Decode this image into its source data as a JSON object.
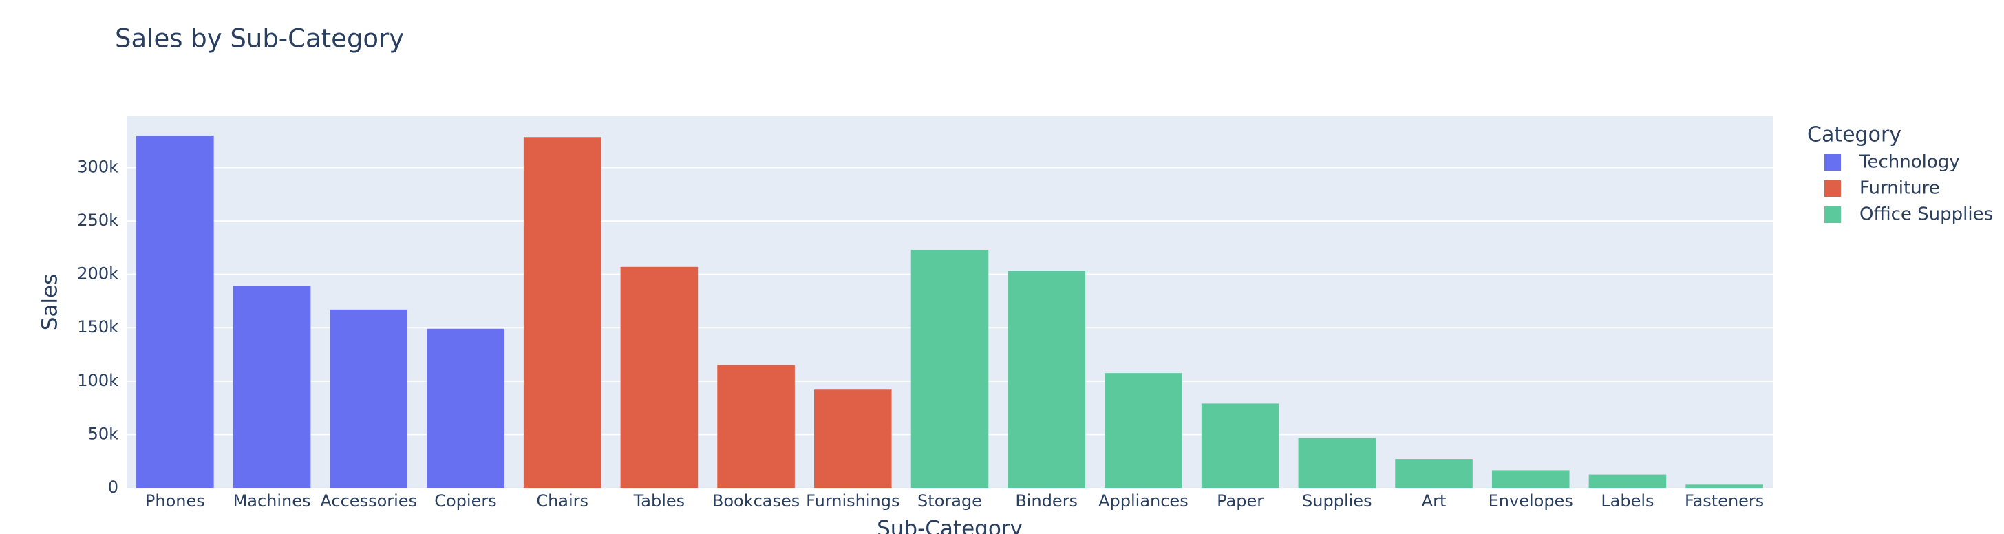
{
  "chart_data": {
    "type": "bar",
    "title": "Sales by Sub-Category",
    "x_label": "Sub-Category",
    "y_label": "Sales",
    "legend_title": "Category",
    "categories": [
      "Phones",
      "Machines",
      "Accessories",
      "Copiers",
      "Chairs",
      "Tables",
      "Bookcases",
      "Furnishings",
      "Storage",
      "Binders",
      "Appliances",
      "Paper",
      "Supplies",
      "Art",
      "Envelopes",
      "Labels",
      "Fasteners"
    ],
    "series": [
      {
        "name": "Technology",
        "color": "#6870f2",
        "values": [
          330000,
          189000,
          167000,
          149000,
          null,
          null,
          null,
          null,
          null,
          null,
          null,
          null,
          null,
          null,
          null,
          null,
          null
        ]
      },
      {
        "name": "Furniture",
        "color": "#df6047",
        "values": [
          null,
          null,
          null,
          null,
          328500,
          207000,
          115000,
          92000,
          null,
          null,
          null,
          null,
          null,
          null,
          null,
          null,
          null
        ]
      },
      {
        "name": "Office Supplies",
        "color": "#5bc99b",
        "values": [
          null,
          null,
          null,
          null,
          null,
          null,
          null,
          null,
          223000,
          203000,
          107500,
          79000,
          46600,
          27000,
          16500,
          12500,
          3000
        ]
      }
    ],
    "ylim": [
      0,
      348000
    ],
    "yticks": [
      0,
      {
        "value": 50000,
        "label": "50k"
      },
      {
        "value": 100000,
        "label": "100k"
      },
      {
        "value": 150000,
        "label": "150k"
      },
      {
        "value": 200000,
        "label": "200k"
      },
      {
        "value": 250000,
        "label": "250k"
      },
      {
        "value": 300000,
        "label": "300k"
      }
    ],
    "grid": true,
    "legend": "right"
  }
}
